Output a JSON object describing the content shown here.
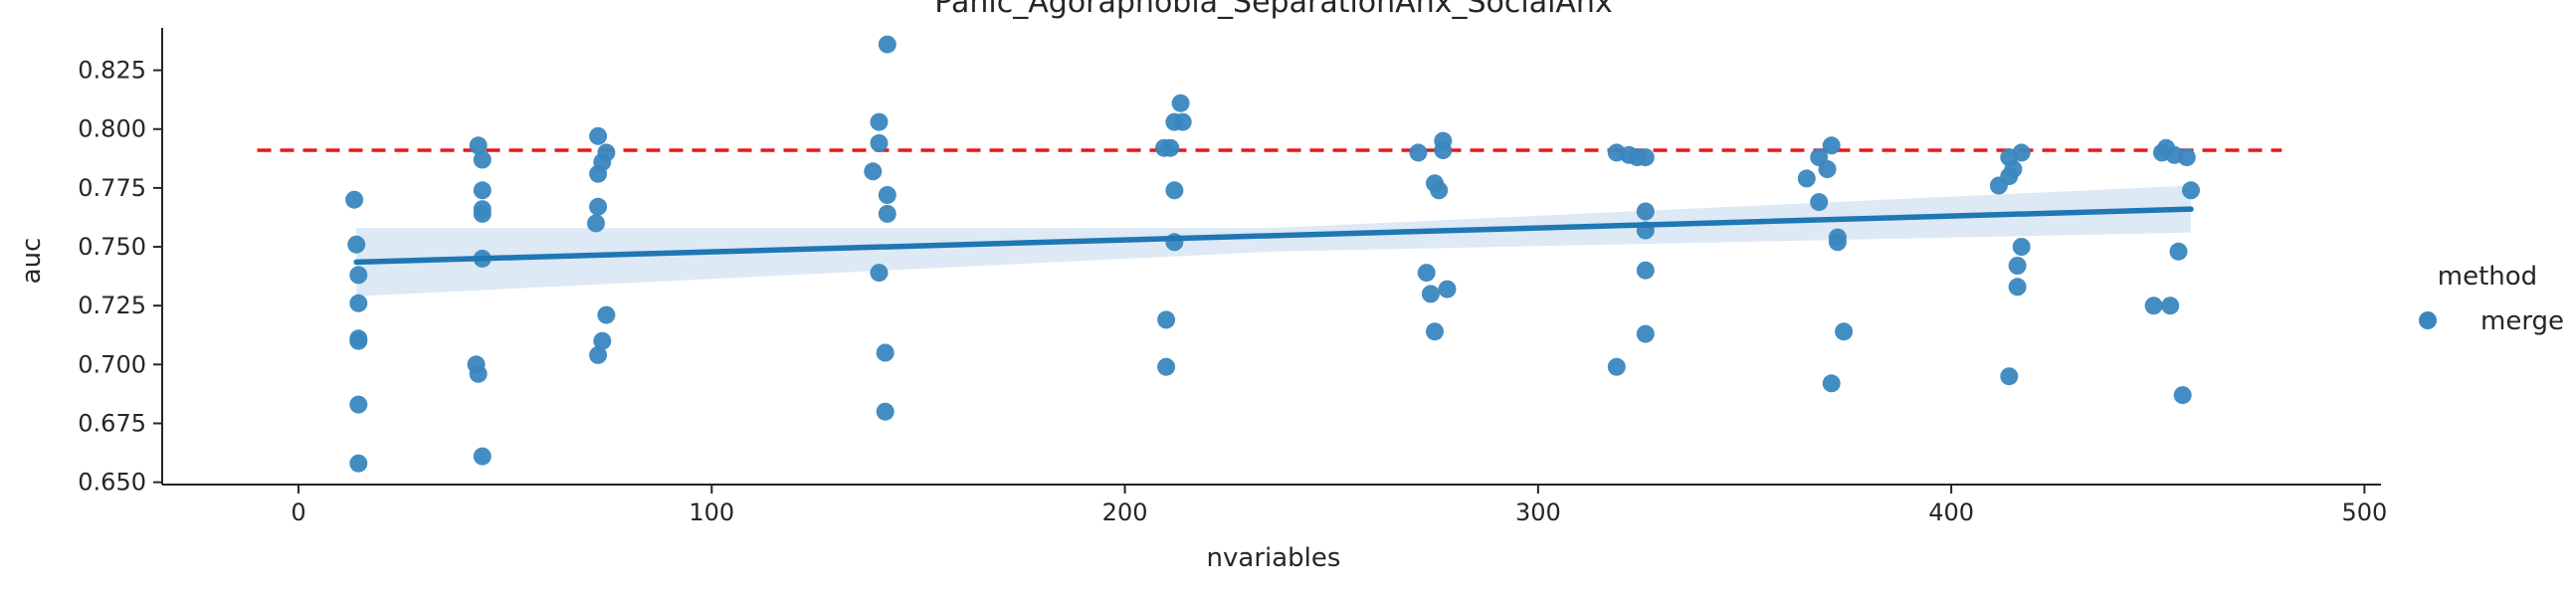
{
  "chart_data": {
    "type": "scatter",
    "title": "Panic_Agoraphobia_SeparationAnx_SocialAnx",
    "xlabel": "nvariables",
    "ylabel": "auc",
    "xlim": [
      -33,
      504
    ],
    "ylim": [
      0.649,
      0.843
    ],
    "xticks": [
      0,
      100,
      200,
      300,
      400,
      500
    ],
    "xtick_labels": [
      "0",
      "100",
      "200",
      "300",
      "400",
      "500"
    ],
    "yticks": [
      0.65,
      0.675,
      0.7,
      0.725,
      0.75,
      0.775,
      0.8,
      0.825
    ],
    "ytick_labels": [
      "0.650",
      "0.675",
      "0.700",
      "0.725",
      "0.750",
      "0.775",
      "0.800",
      "0.825"
    ],
    "grid": false,
    "legend": {
      "title": "method",
      "placement": "right",
      "entries": [
        "merge"
      ]
    },
    "colors": {
      "points": "#3a87bf",
      "regression": "#1f77b4",
      "band": "#c6dbef",
      "reference": "#e31a1c",
      "axis": "#262626"
    },
    "reference_line": {
      "y": 0.791,
      "x_range": [
        -10,
        480
      ],
      "style": "dashed"
    },
    "regression": {
      "x_range": [
        14,
        458
      ],
      "y_start": 0.7435,
      "y_end": 0.766,
      "ci_start": [
        0.729,
        0.758
      ],
      "ci_end": [
        0.756,
        0.776
      ],
      "ci_mid": [
        0.748,
        0.758
      ]
    },
    "series": [
      {
        "name": "merge",
        "points": [
          [
            13.5,
            0.77
          ],
          [
            14,
            0.751
          ],
          [
            14.5,
            0.738
          ],
          [
            14.5,
            0.711
          ],
          [
            14.5,
            0.71
          ],
          [
            14.5,
            0.726
          ],
          [
            14.5,
            0.683
          ],
          [
            14.5,
            0.658
          ],
          [
            43,
            0.7
          ],
          [
            43.5,
            0.696
          ],
          [
            43.5,
            0.793
          ],
          [
            44.5,
            0.787
          ],
          [
            44.5,
            0.774
          ],
          [
            44.5,
            0.766
          ],
          [
            44.5,
            0.764
          ],
          [
            44.5,
            0.745
          ],
          [
            44.5,
            0.661
          ],
          [
            72,
            0.76
          ],
          [
            72.5,
            0.797
          ],
          [
            72.5,
            0.781
          ],
          [
            72.5,
            0.767
          ],
          [
            72.5,
            0.704
          ],
          [
            73.5,
            0.71
          ],
          [
            73.5,
            0.786
          ],
          [
            74.5,
            0.79
          ],
          [
            74.5,
            0.721
          ],
          [
            139,
            0.782
          ],
          [
            140.5,
            0.803
          ],
          [
            140.5,
            0.794
          ],
          [
            140.5,
            0.739
          ],
          [
            142,
            0.705
          ],
          [
            142,
            0.68
          ],
          [
            142.5,
            0.836
          ],
          [
            142.5,
            0.772
          ],
          [
            142.5,
            0.764
          ],
          [
            209.5,
            0.792
          ],
          [
            210,
            0.719
          ],
          [
            210,
            0.699
          ],
          [
            211,
            0.792
          ],
          [
            212,
            0.803
          ],
          [
            212,
            0.774
          ],
          [
            212,
            0.752
          ],
          [
            213.5,
            0.811
          ],
          [
            214,
            0.803
          ],
          [
            271,
            0.79
          ],
          [
            273,
            0.739
          ],
          [
            274,
            0.73
          ],
          [
            275,
            0.777
          ],
          [
            275,
            0.714
          ],
          [
            276,
            0.774
          ],
          [
            277,
            0.795
          ],
          [
            277,
            0.791
          ],
          [
            278,
            0.732
          ],
          [
            319,
            0.79
          ],
          [
            319,
            0.699
          ],
          [
            322,
            0.789
          ],
          [
            324,
            0.788
          ],
          [
            326,
            0.788
          ],
          [
            326,
            0.765
          ],
          [
            326,
            0.757
          ],
          [
            326,
            0.74
          ],
          [
            326,
            0.713
          ],
          [
            365,
            0.779
          ],
          [
            368,
            0.788
          ],
          [
            368,
            0.769
          ],
          [
            370,
            0.783
          ],
          [
            371,
            0.793
          ],
          [
            371,
            0.692
          ],
          [
            372.5,
            0.754
          ],
          [
            372.5,
            0.752
          ],
          [
            374,
            0.714
          ],
          [
            411.5,
            0.776
          ],
          [
            414,
            0.788
          ],
          [
            414,
            0.78
          ],
          [
            414,
            0.695
          ],
          [
            415,
            0.783
          ],
          [
            416,
            0.742
          ],
          [
            416,
            0.733
          ],
          [
            417,
            0.79
          ],
          [
            417,
            0.75
          ],
          [
            449,
            0.725
          ],
          [
            451,
            0.79
          ],
          [
            452,
            0.792
          ],
          [
            453,
            0.725
          ],
          [
            454,
            0.789
          ],
          [
            455,
            0.748
          ],
          [
            456,
            0.687
          ],
          [
            457,
            0.788
          ],
          [
            458,
            0.774
          ]
        ]
      }
    ]
  }
}
